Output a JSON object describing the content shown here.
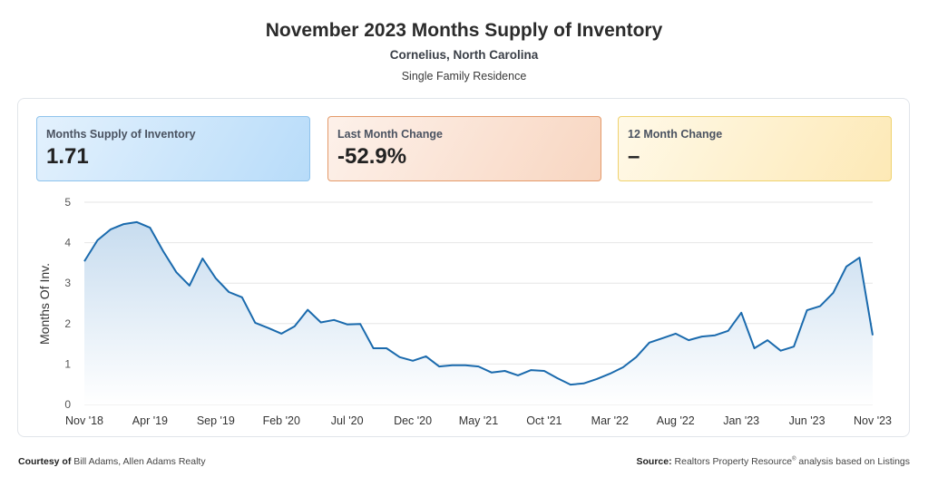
{
  "header": {
    "title": "November 2023 Months Supply of Inventory",
    "location": "Cornelius, North Carolina",
    "property_type": "Single Family Residence"
  },
  "cards": [
    {
      "label": "Months Supply of Inventory",
      "value": "1.71"
    },
    {
      "label": "Last Month Change",
      "value": "-52.9%"
    },
    {
      "label": "12 Month Change",
      "value": "–"
    }
  ],
  "footer": {
    "courtesy_label": "Courtesy of",
    "courtesy_text": "Bill Adams, Allen Adams Realty",
    "source_label": "Source:",
    "source_text_pre": "Realtors Property Resource",
    "source_sup": "®",
    "source_text_post": " analysis based on Listings"
  },
  "colors": {
    "line": "#1a6aad",
    "fill_top": "#c7dcef",
    "fill_bottom": "#ffffff",
    "grid": "#e6e6e6"
  },
  "chart_data": {
    "type": "area",
    "title": "November 2023 Months Supply of Inventory",
    "subtitle": "Cornelius, North Carolina — Single Family Residence",
    "xlabel": "",
    "ylabel": "Months Of Inv.",
    "ylim": [
      0,
      5
    ],
    "yticks": [
      0,
      1,
      2,
      3,
      4,
      5
    ],
    "grid": true,
    "legend": null,
    "xtick_labels": [
      "Nov '18",
      "Apr '19",
      "Sep '19",
      "Feb '20",
      "Jul '20",
      "Dec '20",
      "May '21",
      "Oct '21",
      "Mar '22",
      "Aug '22",
      "Jan '23",
      "Jun '23",
      "Nov '23"
    ],
    "x": [
      "Nov '18",
      "Dec '18",
      "Jan '19",
      "Feb '19",
      "Mar '19",
      "Apr '19",
      "May '19",
      "Jun '19",
      "Jul '19",
      "Aug '19",
      "Sep '19",
      "Oct '19",
      "Nov '19",
      "Dec '19",
      "Jan '20",
      "Feb '20",
      "Mar '20",
      "Apr '20",
      "May '20",
      "Jun '20",
      "Jul '20",
      "Aug '20",
      "Sep '20",
      "Oct '20",
      "Nov '20",
      "Dec '20",
      "Jan '21",
      "Feb '21",
      "Mar '21",
      "Apr '21",
      "May '21",
      "Jun '21",
      "Jul '21",
      "Aug '21",
      "Sep '21",
      "Oct '21",
      "Nov '21",
      "Dec '21",
      "Jan '22",
      "Feb '22",
      "Mar '22",
      "Apr '22",
      "May '22",
      "Jun '22",
      "Jul '22",
      "Aug '22",
      "Sep '22",
      "Oct '22",
      "Nov '22",
      "Dec '22",
      "Jan '23",
      "Feb '23",
      "Mar '23",
      "Apr '23",
      "May '23",
      "Jun '23",
      "Jul '23",
      "Aug '23",
      "Sep '23",
      "Oct '23",
      "Nov '23"
    ],
    "series": [
      {
        "name": "Months Supply of Inventory",
        "values": [
          3.54,
          4.06,
          4.33,
          4.46,
          4.51,
          4.37,
          3.79,
          3.27,
          2.94,
          3.61,
          3.12,
          2.78,
          2.65,
          2.02,
          1.89,
          1.75,
          1.93,
          2.34,
          2.03,
          2.09,
          1.98,
          1.99,
          1.39,
          1.39,
          1.17,
          1.08,
          1.19,
          0.94,
          0.97,
          0.97,
          0.94,
          0.79,
          0.83,
          0.72,
          0.85,
          0.83,
          0.65,
          0.49,
          0.52,
          0.63,
          0.76,
          0.92,
          1.17,
          1.53,
          1.64,
          1.75,
          1.59,
          1.68,
          1.71,
          1.82,
          2.27,
          1.39,
          1.59,
          1.33,
          1.43,
          2.33,
          2.43,
          2.76,
          3.41,
          3.63,
          1.71
        ]
      }
    ]
  }
}
